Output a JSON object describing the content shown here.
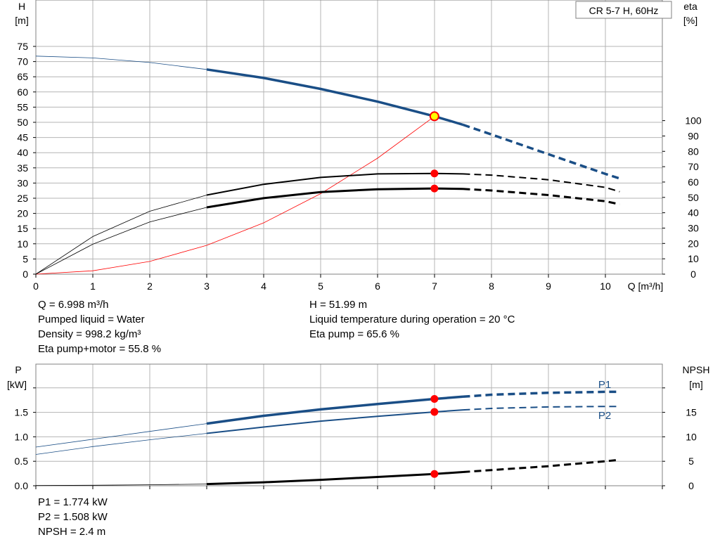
{
  "pump_model": "CR 5-7 H, 60Hz",
  "colors": {
    "blue": "#1a4e86",
    "red": "#ff0000",
    "black": "#000000",
    "yellow": "#ffff00",
    "grid": "#b4b4b4",
    "frame": "#808080"
  },
  "top_chart": {
    "left_axis": {
      "label": "H",
      "unit": "[m]",
      "ticks": [
        0,
        5,
        10,
        15,
        20,
        25,
        30,
        35,
        40,
        45,
        50,
        55,
        60,
        65,
        70,
        75
      ]
    },
    "right_axis": {
      "label": "eta",
      "unit": "[%]",
      "ticks": [
        0,
        10,
        20,
        30,
        40,
        50,
        60,
        70,
        80,
        90,
        100
      ]
    },
    "x_axis": {
      "label": "Q [m³/h]",
      "ticks": [
        0,
        1,
        2,
        3,
        4,
        5,
        6,
        7,
        8,
        9,
        10
      ]
    }
  },
  "bottom_chart": {
    "left_axis": {
      "label": "P",
      "unit": "[kW]",
      "ticks": [
        "0.0",
        "0.5",
        "1.0",
        "1.5"
      ]
    },
    "right_axis": {
      "label": "NPSH",
      "unit": "[m]",
      "ticks": [
        0,
        5,
        10,
        15
      ]
    },
    "series_labels": {
      "p1": "P1",
      "p2": "P2"
    }
  },
  "info_top_left": [
    "Q = 6.998 m³/h",
    "Pumped liquid = Water",
    "Density = 998.2 kg/m³",
    "Eta pump+motor = 55.8 %"
  ],
  "info_top_right": [
    "H = 51.99 m",
    "Liquid temperature during operation = 20 °C",
    "Eta pump = 65.6 %"
  ],
  "info_bottom": [
    "P1 = 1.774 kW",
    "P2 = 1.508 kW",
    "NPSH = 2.4 m"
  ],
  "chart_data": [
    {
      "type": "line",
      "title": "CR 5-7 H, 60Hz",
      "xlabel": "Q [m³/h]",
      "ylabel": "H [m]",
      "y2label": "eta [%]",
      "xlim": [
        0,
        11
      ],
      "ylim": [
        0,
        75
      ],
      "y2lim": [
        0,
        100
      ],
      "grid": true,
      "duty_point": {
        "Q": 6.998,
        "H": 51.99,
        "eta_pump": 65.6,
        "eta_total": 55.8
      },
      "series": [
        {
          "name": "H",
          "axis": "left",
          "color": "#1a4e86",
          "x": [
            0,
            1,
            2,
            3,
            4,
            5,
            6,
            7,
            7.5,
            8,
            9,
            10,
            10.25
          ],
          "y": [
            71.8,
            71.2,
            69.7,
            67.4,
            64.6,
            61.0,
            56.8,
            52.0,
            49.2,
            46.0,
            39.5,
            33.0,
            31.5
          ]
        },
        {
          "name": "Eta pump",
          "axis": "right",
          "color": "#000000",
          "x": [
            0,
            1,
            2,
            3,
            4,
            5,
            6,
            7,
            7.5,
            8,
            9,
            10,
            10.25
          ],
          "y": [
            0,
            24.5,
            41,
            51.5,
            58.5,
            63,
            65.3,
            65.6,
            65.3,
            64.5,
            61.5,
            56.5,
            53.7
          ]
        },
        {
          "name": "Eta pump+motor",
          "axis": "right",
          "color": "#000000",
          "x": [
            0,
            1,
            2,
            3,
            4,
            5,
            6,
            7,
            7.5,
            8,
            9,
            10,
            10.25
          ],
          "y": [
            0,
            19.5,
            34,
            43.5,
            49.5,
            53.5,
            55.3,
            55.8,
            55.5,
            54.5,
            51.5,
            47.5,
            45.5
          ]
        },
        {
          "name": "System curve",
          "axis": "left",
          "color": "#ff0000",
          "x": [
            0,
            1,
            2,
            3,
            4,
            5,
            6,
            7
          ],
          "y": [
            0,
            1.1,
            4.2,
            9.5,
            16.9,
            26.5,
            38.2,
            52.0
          ]
        }
      ]
    },
    {
      "type": "line",
      "xlabel": "Q [m³/h]",
      "ylabel": "P [kW]",
      "y2label": "NPSH [m]",
      "xlim": [
        0,
        11
      ],
      "ylim": [
        0,
        2
      ],
      "y2lim": [
        0,
        20
      ],
      "grid": true,
      "duty_point": {
        "P1": 1.774,
        "P2": 1.508,
        "NPSH": 2.4
      },
      "series": [
        {
          "name": "P1",
          "axis": "left",
          "color": "#1a4e86",
          "x": [
            0,
            1,
            2,
            3,
            4,
            5,
            6,
            7,
            7.5,
            8,
            9,
            10,
            10.25
          ],
          "y": [
            0.79,
            0.95,
            1.11,
            1.27,
            1.43,
            1.56,
            1.67,
            1.774,
            1.82,
            1.86,
            1.9,
            1.92,
            1.92
          ]
        },
        {
          "name": "P2",
          "axis": "left",
          "color": "#1a4e86",
          "x": [
            0,
            1,
            2,
            3,
            4,
            5,
            6,
            7,
            7.5,
            8,
            9,
            10,
            10.25
          ],
          "y": [
            0.64,
            0.8,
            0.94,
            1.07,
            1.2,
            1.32,
            1.42,
            1.508,
            1.55,
            1.58,
            1.61,
            1.62,
            1.62
          ]
        },
        {
          "name": "NPSH",
          "axis": "right",
          "color": "#000000",
          "x": [
            0,
            1,
            2,
            3,
            4,
            5,
            6,
            7,
            7.5,
            8,
            9,
            10,
            10.25
          ],
          "y": [
            0.05,
            0.1,
            0.2,
            0.35,
            0.7,
            1.2,
            1.8,
            2.4,
            2.8,
            3.2,
            4.0,
            5.0,
            5.3
          ]
        }
      ]
    }
  ]
}
